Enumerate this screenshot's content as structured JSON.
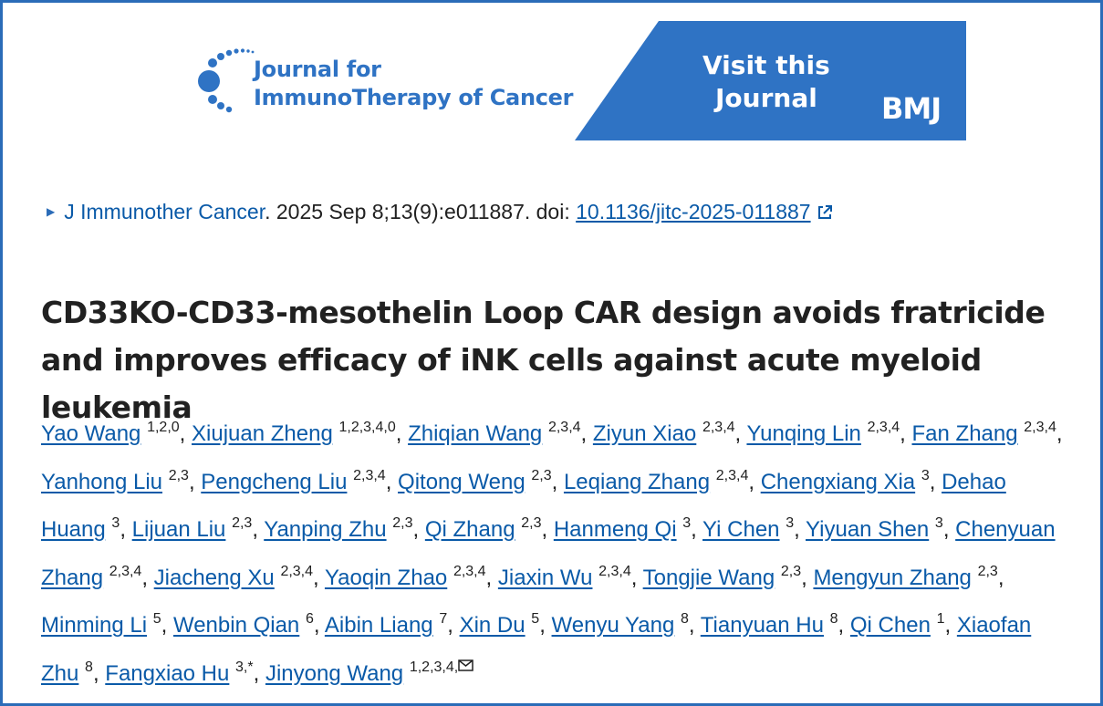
{
  "banner": {
    "journal_line1": "Journal for",
    "journal_line2": "ImmunoTherapy of Cancer",
    "cta_line1": "Visit this",
    "cta_line2": "Journal",
    "publisher": "BMJ",
    "logo_icon": "jitc-dots-logo",
    "brand_color": "#2f73c4"
  },
  "citation": {
    "journal": "J Immunother Cancer",
    "details": ". 2025 Sep 8;13(9):e011887. doi: ",
    "doi": "10.1136/jitc-2025-011887",
    "expand_icon": "triangle-right-icon",
    "external_icon": "external-link-icon"
  },
  "title": "CD33KO-CD33-mesothelin Loop CAR design avoids fratricide and improves efficacy of iNK cells against acute myeloid leukemia",
  "authors": [
    {
      "name": "Yao Wang",
      "aff": "1,2,0"
    },
    {
      "name": "Xiujuan Zheng",
      "aff": "1,2,3,4,0"
    },
    {
      "name": "Zhiqian Wang",
      "aff": "2,3,4"
    },
    {
      "name": "Ziyun Xiao",
      "aff": "2,3,4"
    },
    {
      "name": "Yunqing Lin",
      "aff": "2,3,4"
    },
    {
      "name": "Fan Zhang",
      "aff": "2,3,4"
    },
    {
      "name": "Yanhong Liu",
      "aff": "2,3"
    },
    {
      "name": "Pengcheng Liu",
      "aff": "2,3,4"
    },
    {
      "name": "Qitong Weng",
      "aff": "2,3"
    },
    {
      "name": "Leqiang Zhang",
      "aff": "2,3,4"
    },
    {
      "name": "Chengxiang Xia",
      "aff": "3"
    },
    {
      "name": "Dehao Huang",
      "aff": "3"
    },
    {
      "name": "Lijuan Liu",
      "aff": "2,3"
    },
    {
      "name": "Yanping Zhu",
      "aff": "2,3"
    },
    {
      "name": "Qi Zhang",
      "aff": "2,3"
    },
    {
      "name": "Hanmeng Qi",
      "aff": "3"
    },
    {
      "name": "Yi Chen",
      "aff": "3"
    },
    {
      "name": "Yiyuan Shen",
      "aff": "3"
    },
    {
      "name": "Chenyuan Zhang",
      "aff": "2,3,4"
    },
    {
      "name": "Jiacheng Xu",
      "aff": "2,3,4"
    },
    {
      "name": "Yaoqin Zhao",
      "aff": "2,3,4"
    },
    {
      "name": "Jiaxin Wu",
      "aff": "2,3,4"
    },
    {
      "name": "Tongjie Wang",
      "aff": "2,3"
    },
    {
      "name": "Mengyun Zhang",
      "aff": "2,3"
    },
    {
      "name": "Minming Li",
      "aff": "5"
    },
    {
      "name": "Wenbin Qian",
      "aff": "6"
    },
    {
      "name": "Aibin Liang",
      "aff": "7"
    },
    {
      "name": "Xin Du",
      "aff": "5"
    },
    {
      "name": "Wenyu Yang",
      "aff": "8"
    },
    {
      "name": "Tianyuan Hu",
      "aff": "8"
    },
    {
      "name": "Qi Chen",
      "aff": "1"
    },
    {
      "name": "Xiaofan Zhu",
      "aff": "8"
    },
    {
      "name": "Fangxiao Hu",
      "aff": "3,*"
    },
    {
      "name": "Jinyong Wang",
      "aff": "1,2,3,4,",
      "mail": true
    }
  ],
  "mail_icon": "envelope-icon"
}
